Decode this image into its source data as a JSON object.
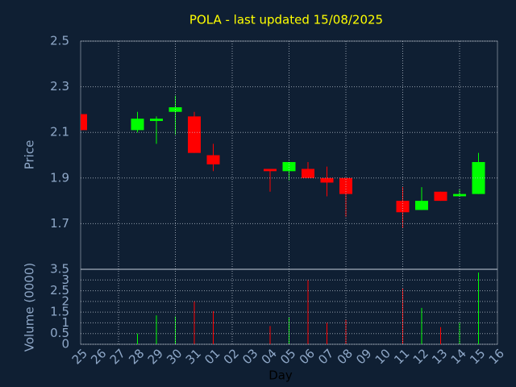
{
  "chart_data": {
    "type": "candlestick",
    "title": "POLA - last updated 15/08/2025",
    "ylabel": "Price",
    "xlabel": "Day",
    "categories": [
      "25",
      "26",
      "27",
      "28",
      "29",
      "30",
      "31",
      "01",
      "02",
      "03",
      "04",
      "05",
      "06",
      "07",
      "08",
      "09",
      "10",
      "11",
      "12",
      "13",
      "14",
      "15",
      "16"
    ],
    "open": [
      2.18,
      null,
      null,
      2.11,
      2.15,
      2.19,
      2.17,
      2.0,
      null,
      null,
      1.94,
      1.93,
      1.94,
      1.9,
      1.9,
      null,
      null,
      1.8,
      1.76,
      1.84,
      1.82,
      1.83,
      null
    ],
    "high": [
      2.18,
      null,
      null,
      2.19,
      2.17,
      2.26,
      2.19,
      2.05,
      null,
      null,
      1.94,
      1.97,
      1.97,
      1.95,
      1.9,
      null,
      null,
      1.86,
      1.86,
      1.84,
      1.85,
      2.01,
      null
    ],
    "low": [
      2.11,
      null,
      null,
      2.1,
      2.05,
      2.09,
      2.01,
      1.93,
      null,
      null,
      1.84,
      1.89,
      1.9,
      1.82,
      1.73,
      null,
      null,
      1.68,
      1.76,
      1.8,
      1.82,
      1.83,
      null
    ],
    "close": [
      2.11,
      null,
      null,
      2.16,
      2.16,
      2.21,
      2.01,
      1.96,
      null,
      null,
      1.93,
      1.97,
      1.9,
      1.88,
      1.83,
      null,
      null,
      1.75,
      1.8,
      1.8,
      1.83,
      1.97,
      null
    ],
    "up_color": "#00ff00",
    "down_color": "#ff0000",
    "ylim": [
      1.5,
      2.5
    ],
    "yticks": [
      1.7,
      1.9,
      2.1,
      2.3,
      2.5
    ],
    "grid": true,
    "volume": {
      "ylabel": "Volume (0000)",
      "ylim": [
        0,
        3.5
      ],
      "yticks": [
        0,
        0.5,
        1,
        1.5,
        2,
        2.5,
        3,
        3.5
      ],
      "values": [
        0,
        null,
        null,
        0.5,
        1.35,
        1.3,
        2.0,
        1.55,
        null,
        null,
        0.85,
        1.25,
        3.0,
        1.0,
        1.15,
        null,
        null,
        2.6,
        1.7,
        0.8,
        1.0,
        3.35,
        null
      ]
    }
  }
}
